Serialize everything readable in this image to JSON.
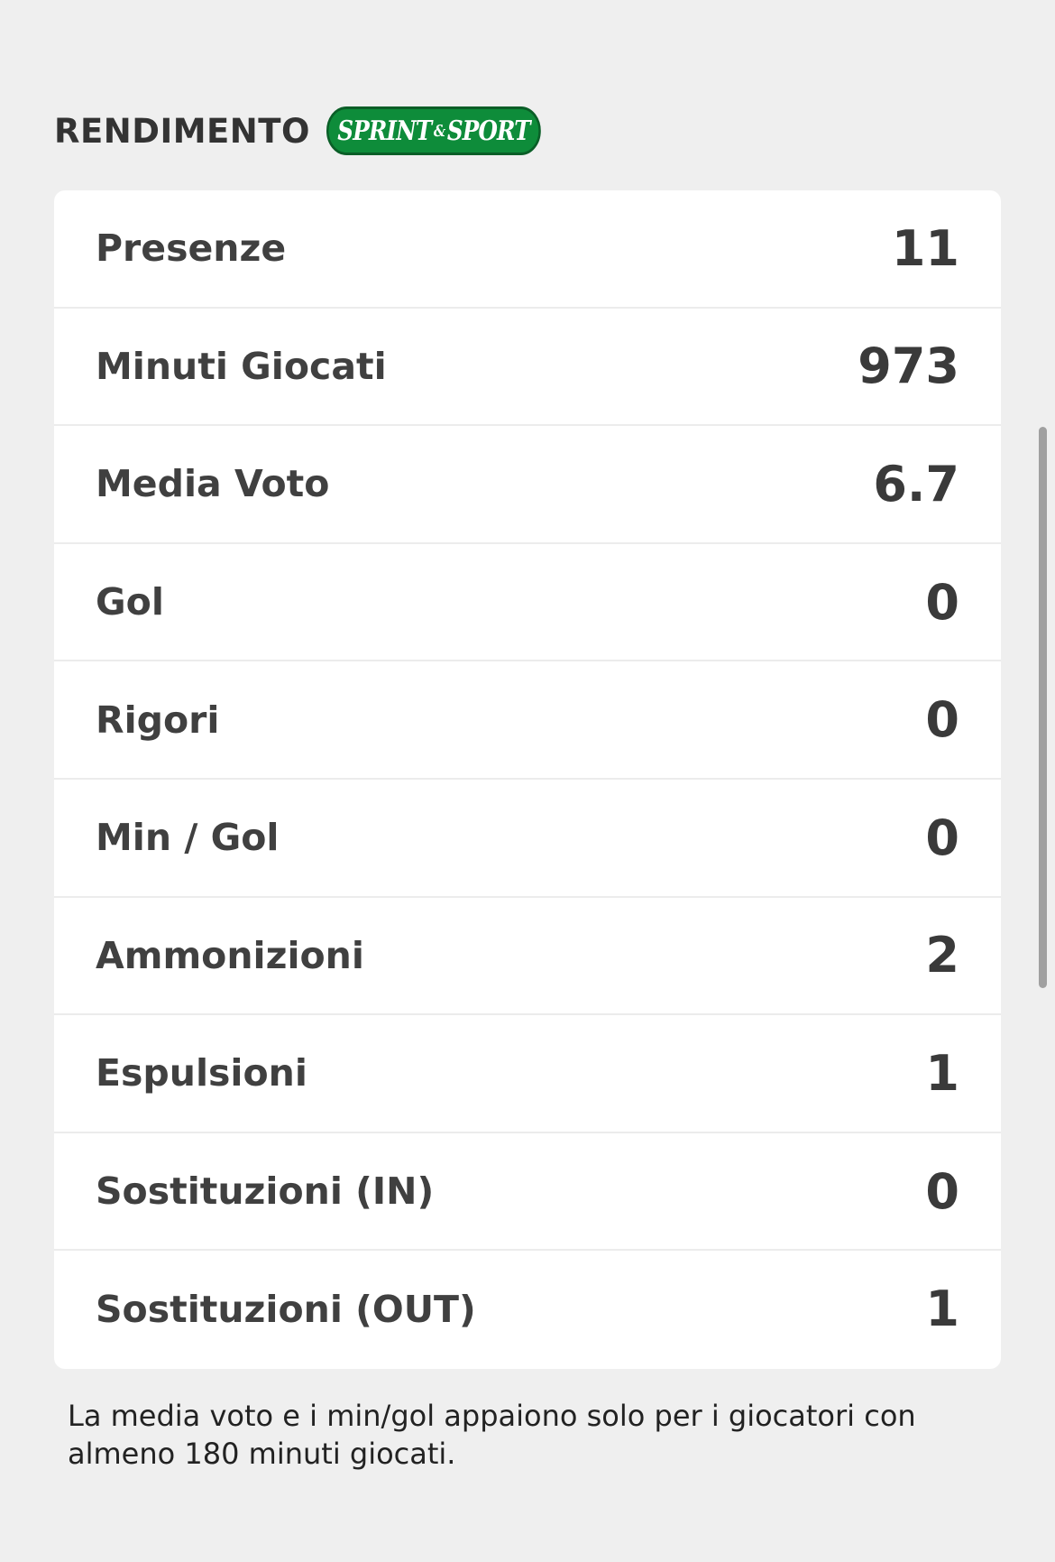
{
  "header": {
    "title": "RENDIMENTO",
    "logo": {
      "part1": "SPRINT",
      "amp": "&",
      "part2": "SPORT",
      "color": "#0e8c3a"
    }
  },
  "stats": [
    {
      "label": "Presenze",
      "value": "11"
    },
    {
      "label": "Minuti Giocati",
      "value": "973"
    },
    {
      "label": "Media Voto",
      "value": "6.7"
    },
    {
      "label": "Gol",
      "value": "0"
    },
    {
      "label": "Rigori",
      "value": "0"
    },
    {
      "label": "Min / Gol",
      "value": "0"
    },
    {
      "label": "Ammonizioni",
      "value": "2"
    },
    {
      "label": "Espulsioni",
      "value": "1"
    },
    {
      "label": "Sostituzioni (IN)",
      "value": "0"
    },
    {
      "label": "Sostituzioni (OUT)",
      "value": "1"
    }
  ],
  "footnote": "La media voto e i min/gol appaiono solo per i giocatori con almeno 180 minuti giocati."
}
